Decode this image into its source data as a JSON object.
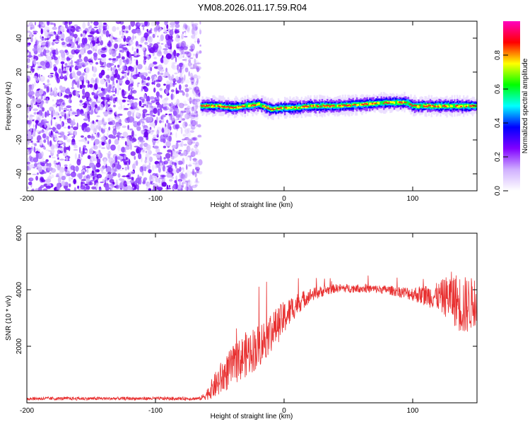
{
  "title": "YM08.2026.011.17.59.R04",
  "chart_data": [
    {
      "type": "heatmap",
      "title": "YM08.2026.011.17.59.R04",
      "xlabel": "Height of straight line (km)",
      "ylabel": "Frequency (Hz)",
      "xlim": [
        -200,
        150
      ],
      "ylim": [
        -50,
        50
      ],
      "x_ticks": [
        -200,
        -100,
        0,
        100
      ],
      "y_ticks": [
        -40,
        -20,
        0,
        20,
        40
      ],
      "colorbar": {
        "label": "Normalized spectral amplitude",
        "range": [
          0,
          1
        ],
        "ticks": [
          0.0,
          0.2,
          0.4,
          0.6,
          0.8
        ],
        "colors": [
          "#ffffff",
          "#d0b0ff",
          "#8000ff",
          "#0000ff",
          "#00ffff",
          "#00ff00",
          "#ffff00",
          "#ff0000",
          "#ff00c0"
        ]
      },
      "noise_region_x": [
        -200,
        -65
      ],
      "signal_start_x": -65,
      "signal_center_hz": [
        [
          -65,
          0
        ],
        [
          -50,
          0
        ],
        [
          -40,
          -1
        ],
        [
          -30,
          0
        ],
        [
          -20,
          1
        ],
        [
          -10,
          -2
        ],
        [
          0,
          -1
        ],
        [
          10,
          -1
        ],
        [
          20,
          0
        ],
        [
          40,
          0
        ],
        [
          60,
          1
        ],
        [
          80,
          2
        ],
        [
          95,
          2
        ],
        [
          100,
          0
        ],
        [
          120,
          0
        ],
        [
          140,
          0
        ],
        [
          150,
          0
        ]
      ]
    },
    {
      "type": "line",
      "xlabel": "Height of straight line (km)",
      "ylabel": "SNR (10 * v/v)",
      "xlim": [
        -200,
        150
      ],
      "ylim": [
        0,
        6000
      ],
      "x_ticks": [
        -200,
        -100,
        0,
        100
      ],
      "y_ticks": [
        2000,
        4000,
        6000
      ],
      "color": "#e83030",
      "series": [
        {
          "name": "SNR",
          "x": [
            -200,
            -150,
            -100,
            -65,
            -60,
            -50,
            -40,
            -30,
            -20,
            -10,
            0,
            10,
            20,
            30,
            40,
            60,
            80,
            100,
            120,
            130,
            140,
            150
          ],
          "values": [
            150,
            150,
            150,
            150,
            300,
            800,
            1300,
            1700,
            2000,
            2500,
            3000,
            3500,
            3800,
            3950,
            4050,
            4050,
            4000,
            3850,
            3750,
            3750,
            3400,
            3600
          ],
          "noise_amplitude": [
            60,
            60,
            60,
            60,
            200,
            600,
            700,
            800,
            800,
            700,
            600,
            400,
            250,
            200,
            150,
            150,
            150,
            250,
            500,
            900,
            1100,
            800
          ]
        }
      ]
    }
  ]
}
